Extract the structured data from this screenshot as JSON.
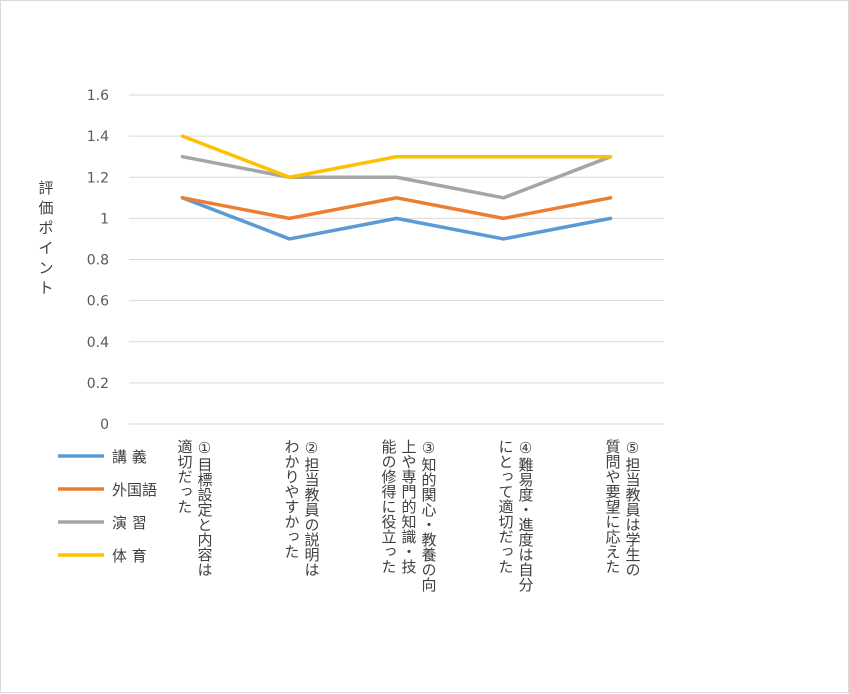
{
  "chart_data": {
    "type": "line",
    "ylabel": "評価ポイント",
    "ylim": [
      0,
      1.6
    ],
    "yticks": [
      "0",
      "0.2",
      "0.4",
      "0.6",
      "0.8",
      "1",
      "1.2",
      "1.4",
      "1.6"
    ],
    "grid": true,
    "legend_position": "bottom-left",
    "categories": [
      [
        "①目標設定と内容は",
        "適切だった"
      ],
      [
        "②担当教員の説明は",
        "わかりやすかった"
      ],
      [
        "③知的関心・教養の向",
        "上や専門的知識・技",
        "能の修得に役立った"
      ],
      [
        "④難易度・進度は自分",
        "にとって適切だった"
      ],
      [
        "⑤担当教員は学生の",
        "質問や要望に応えた"
      ]
    ],
    "series": [
      {
        "name": "講 義",
        "color": "#5b9bd5",
        "values": [
          1.1,
          0.9,
          1.0,
          0.9,
          1.0
        ]
      },
      {
        "name": "外国語",
        "color": "#ed7d31",
        "values": [
          1.1,
          1.0,
          1.1,
          1.0,
          1.1
        ]
      },
      {
        "name": "演 習",
        "color": "#a5a5a5",
        "values": [
          1.3,
          1.2,
          1.2,
          1.1,
          1.3
        ]
      },
      {
        "name": "体 育",
        "color": "#ffc000",
        "values": [
          1.4,
          1.2,
          1.3,
          1.3,
          1.3
        ]
      }
    ]
  }
}
